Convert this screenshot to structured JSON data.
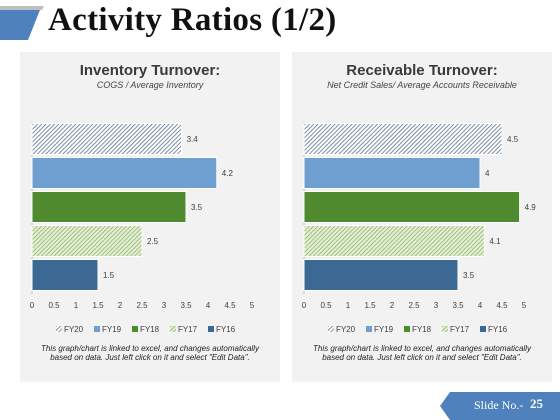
{
  "slide": {
    "title": "Activity Ratios (1/2)",
    "slide_label": "Slide No.-",
    "slide_number": "25"
  },
  "colors": {
    "FY20": "#5a6f8c",
    "FY19": "#6f9fd0",
    "FY18": "#4f8a2e",
    "FY17": "#8fb46a",
    "FY16": "#3c6894",
    "panel_bg": "#f2f2f2",
    "accent": "#4f81bd"
  },
  "chart_data": [
    {
      "type": "bar",
      "orientation": "horizontal",
      "title": "Inventory Turnover:",
      "subtitle": "COGS / Average Inventory",
      "categories": [
        "FY20",
        "FY19",
        "FY18",
        "FY17",
        "FY16"
      ],
      "values": [
        3.4,
        4.2,
        3.5,
        2.5,
        1.5
      ],
      "value_labels": [
        "3.4",
        "4.2",
        "3.5",
        "2.5",
        "1.5"
      ],
      "xlim": [
        0,
        5
      ],
      "xticks": [
        "0",
        "0.5",
        "1",
        "1.5",
        "2",
        "2.5",
        "3",
        "3.5",
        "4",
        "4.5",
        "5"
      ],
      "legend": [
        "FY20",
        "FY19",
        "FY18",
        "FY17",
        "FY16"
      ],
      "legend_position": "bottom",
      "grid": false,
      "note": "This graph/chart is linked to excel, and changes automatically based on data. Just left click on it and select \"Edit Data\"."
    },
    {
      "type": "bar",
      "orientation": "horizontal",
      "title": "Receivable Turnover:",
      "subtitle": "Net Credit Sales/ Average Accounts Receivable",
      "categories": [
        "FY20",
        "FY19",
        "FY18",
        "FY17",
        "FY16"
      ],
      "values": [
        4.5,
        4,
        4.9,
        4.1,
        3.5
      ],
      "value_labels": [
        "4.5",
        "4",
        "4.9",
        "4.1",
        "3.5"
      ],
      "xlim": [
        0,
        5
      ],
      "xticks": [
        "0",
        "0.5",
        "1",
        "1.5",
        "2",
        "2.5",
        "3",
        "3.5",
        "4",
        "4.5",
        "5"
      ],
      "legend": [
        "FY20",
        "FY19",
        "FY18",
        "FY17",
        "FY16"
      ],
      "legend_position": "bottom",
      "grid": false,
      "note": "This graph/chart is linked to excel, and changes automatically based on data. Just left click on it and select \"Edit Data\"."
    }
  ]
}
